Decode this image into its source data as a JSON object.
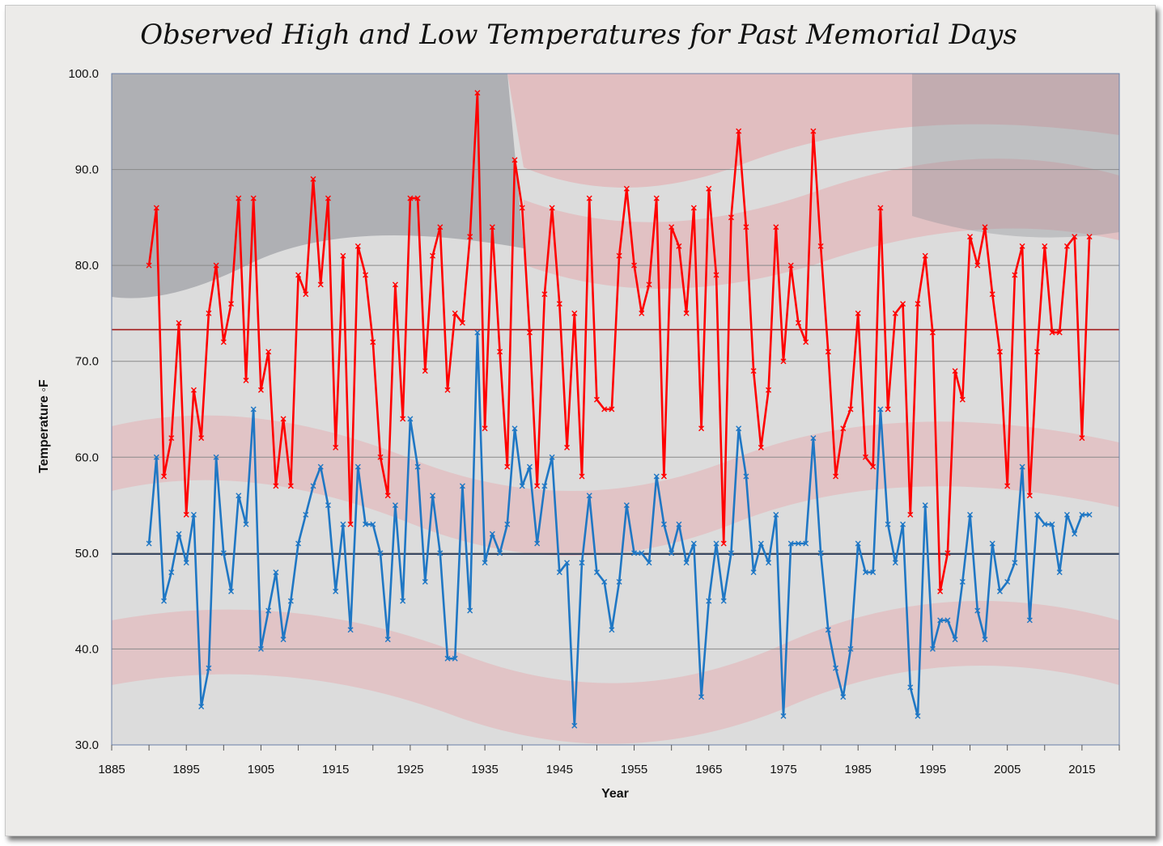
{
  "chart_data": {
    "type": "line",
    "title": "Observed High and Low Temperatures for Past Memorial Days",
    "xlabel": "Year",
    "ylabel": "Temperature ◦F",
    "xlim": [
      1885,
      2020
    ],
    "ylim": [
      30.0,
      100.0
    ],
    "x_ticks": [
      "1885",
      "1895",
      "1905",
      "1915",
      "1925",
      "1935",
      "1945",
      "1955",
      "1965",
      "1975",
      "1985",
      "1995",
      "2005",
      "2015"
    ],
    "y_ticks": [
      "30.0",
      "40.0",
      "50.0",
      "60.0",
      "70.0",
      "80.0",
      "90.0",
      "100.0"
    ],
    "grid": "horizontal",
    "legend": "none",
    "x": [
      1890,
      1891,
      1892,
      1893,
      1894,
      1895,
      1896,
      1897,
      1898,
      1899,
      1900,
      1901,
      1902,
      1903,
      1904,
      1905,
      1906,
      1907,
      1908,
      1909,
      1910,
      1911,
      1912,
      1913,
      1914,
      1915,
      1916,
      1917,
      1918,
      1919,
      1920,
      1921,
      1922,
      1923,
      1924,
      1925,
      1926,
      1927,
      1928,
      1929,
      1930,
      1931,
      1932,
      1933,
      1934,
      1935,
      1936,
      1937,
      1938,
      1939,
      1940,
      1941,
      1942,
      1943,
      1944,
      1945,
      1946,
      1947,
      1948,
      1949,
      1950,
      1951,
      1952,
      1953,
      1954,
      1955,
      1956,
      1957,
      1958,
      1959,
      1960,
      1961,
      1962,
      1963,
      1964,
      1965,
      1966,
      1967,
      1968,
      1969,
      1970,
      1971,
      1972,
      1973,
      1974,
      1975,
      1976,
      1977,
      1978,
      1979,
      1980,
      1981,
      1982,
      1983,
      1984,
      1985,
      1986,
      1987,
      1988,
      1989,
      1990,
      1991,
      1992,
      1993,
      1994,
      1995,
      1996,
      1997,
      1998,
      1999,
      2000,
      2001,
      2002,
      2003,
      2004,
      2005,
      2006,
      2007,
      2008,
      2009,
      2010,
      2011,
      2012,
      2013,
      2014,
      2015,
      2016
    ],
    "series": [
      {
        "values": [
          80,
          86,
          58,
          62,
          74,
          54,
          67,
          62,
          75,
          80,
          72,
          76,
          87,
          68,
          87,
          67,
          71,
          57,
          64,
          57,
          79,
          77,
          89,
          78,
          87,
          61,
          81,
          53,
          82,
          79,
          72,
          60,
          56,
          78,
          64,
          87,
          87,
          69,
          81,
          84,
          67,
          75,
          74,
          83,
          98,
          63,
          84,
          71,
          59,
          91,
          86,
          73,
          57,
          77,
          86,
          76,
          61,
          75,
          58,
          87,
          66,
          65,
          65,
          81,
          88,
          80,
          75,
          78,
          87,
          58,
          84,
          82,
          75,
          86,
          63,
          88,
          79,
          51,
          85,
          94,
          84,
          69,
          61,
          67,
          84,
          70,
          80,
          74,
          72,
          94,
          82,
          71,
          58,
          63,
          65,
          75,
          60,
          59,
          86,
          65,
          75,
          76,
          54,
          76,
          81,
          73,
          46,
          50,
          69,
          66,
          83,
          80,
          84,
          77,
          71,
          57,
          79,
          82,
          56,
          71,
          82,
          73,
          73,
          82,
          83,
          62,
          83
        ],
        "color": "#ff0000"
      },
      {
        "values": [
          51,
          60,
          45,
          48,
          52,
          49,
          54,
          34,
          38,
          60,
          50,
          46,
          56,
          53,
          65,
          40,
          44,
          48,
          41,
          45,
          51,
          54,
          57,
          59,
          55,
          46,
          53,
          42,
          59,
          53,
          53,
          50,
          41,
          55,
          45,
          64,
          59,
          47,
          56,
          50,
          39,
          39,
          57,
          44,
          73,
          49,
          52,
          50,
          53,
          63,
          57,
          59,
          51,
          57,
          60,
          48,
          49,
          32,
          49,
          56,
          48,
          47,
          42,
          47,
          55,
          50,
          50,
          49,
          58,
          53,
          50,
          53,
          49,
          51,
          35,
          45,
          51,
          45,
          50,
          63,
          58,
          48,
          51,
          49,
          54,
          33,
          51,
          51,
          51,
          62,
          50,
          42,
          38,
          35,
          40,
          51,
          48,
          48,
          65,
          53,
          49,
          53,
          36,
          33,
          55,
          40,
          43,
          43,
          41,
          47,
          54,
          44,
          41,
          51,
          46,
          47,
          49,
          59,
          43,
          54,
          53,
          53,
          48,
          54,
          52,
          54,
          54
        ],
        "color": "#1f77c4"
      }
    ],
    "reference_lines": [
      {
        "y": 73.3,
        "color": "#a01818"
      },
      {
        "y": 49.9,
        "color": "#1f3050"
      }
    ]
  }
}
